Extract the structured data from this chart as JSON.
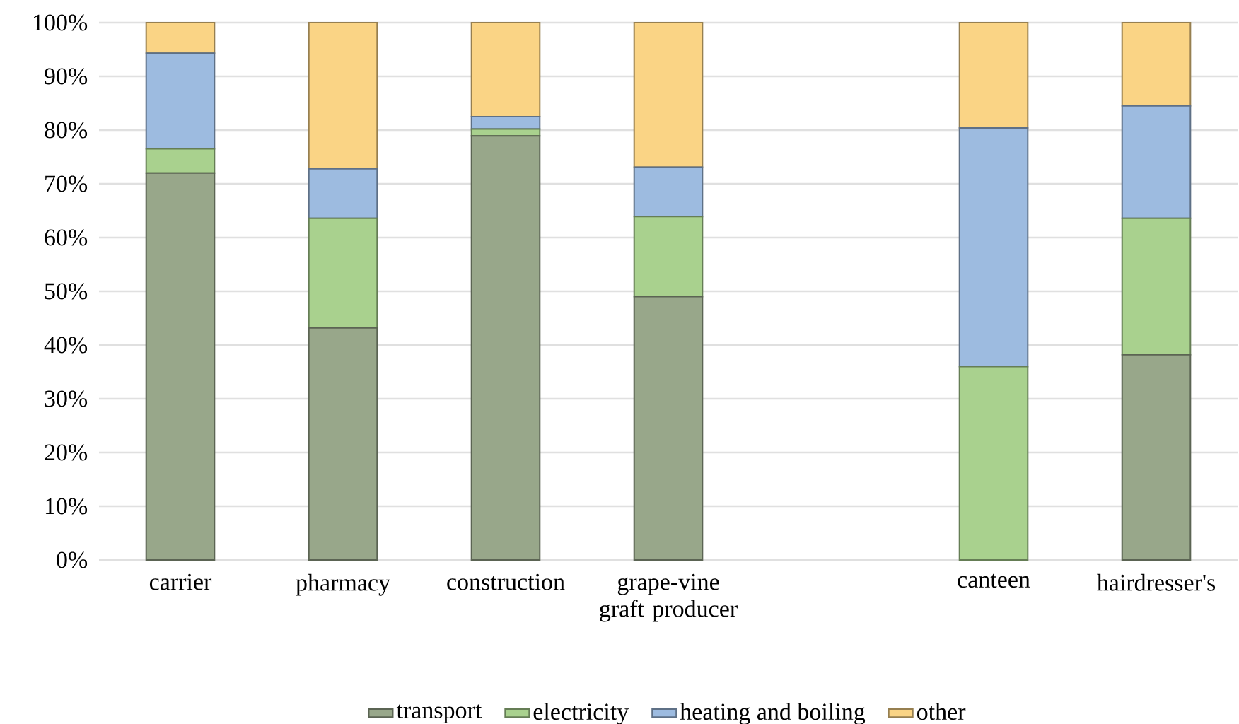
{
  "chart_data": {
    "type": "bar",
    "stacked": true,
    "categories": [
      "carrier",
      "pharmacy",
      "construction",
      "grape-vine graft producer",
      null,
      "canteen",
      "hairdresser's"
    ],
    "series": [
      {
        "name": "transport",
        "color": "#98a78a",
        "values": [
          72,
          43.2,
          78.9,
          49,
          null,
          0,
          38.2
        ]
      },
      {
        "name": "electricity",
        "color": "#a9d18e",
        "values": [
          4.5,
          20.4,
          1.3,
          14.9,
          null,
          36,
          25.4
        ]
      },
      {
        "name": "heating and boiling",
        "color": "#9dbbe0",
        "values": [
          17.8,
          9.2,
          2.3,
          9.2,
          null,
          44.4,
          20.9
        ]
      },
      {
        "name": "other",
        "color": "#fad485",
        "values": [
          5.7,
          27.2,
          17.5,
          26.9,
          null,
          19.6,
          15.5
        ]
      }
    ],
    "ylim": [
      0,
      100
    ],
    "yticks": [
      {
        "value": 0,
        "label": "0%"
      },
      {
        "value": 10,
        "label": "10%"
      },
      {
        "value": 20,
        "label": "20%"
      },
      {
        "value": 30,
        "label": "30%"
      },
      {
        "value": 40,
        "label": "40%"
      },
      {
        "value": 50,
        "label": "50%"
      },
      {
        "value": 60,
        "label": "60%"
      },
      {
        "value": 70,
        "label": "70%"
      },
      {
        "value": 80,
        "label": "80%"
      },
      {
        "value": 90,
        "label": "90%"
      },
      {
        "value": 100,
        "label": "100%"
      }
    ],
    "grid": "y",
    "legend": "bottom"
  }
}
